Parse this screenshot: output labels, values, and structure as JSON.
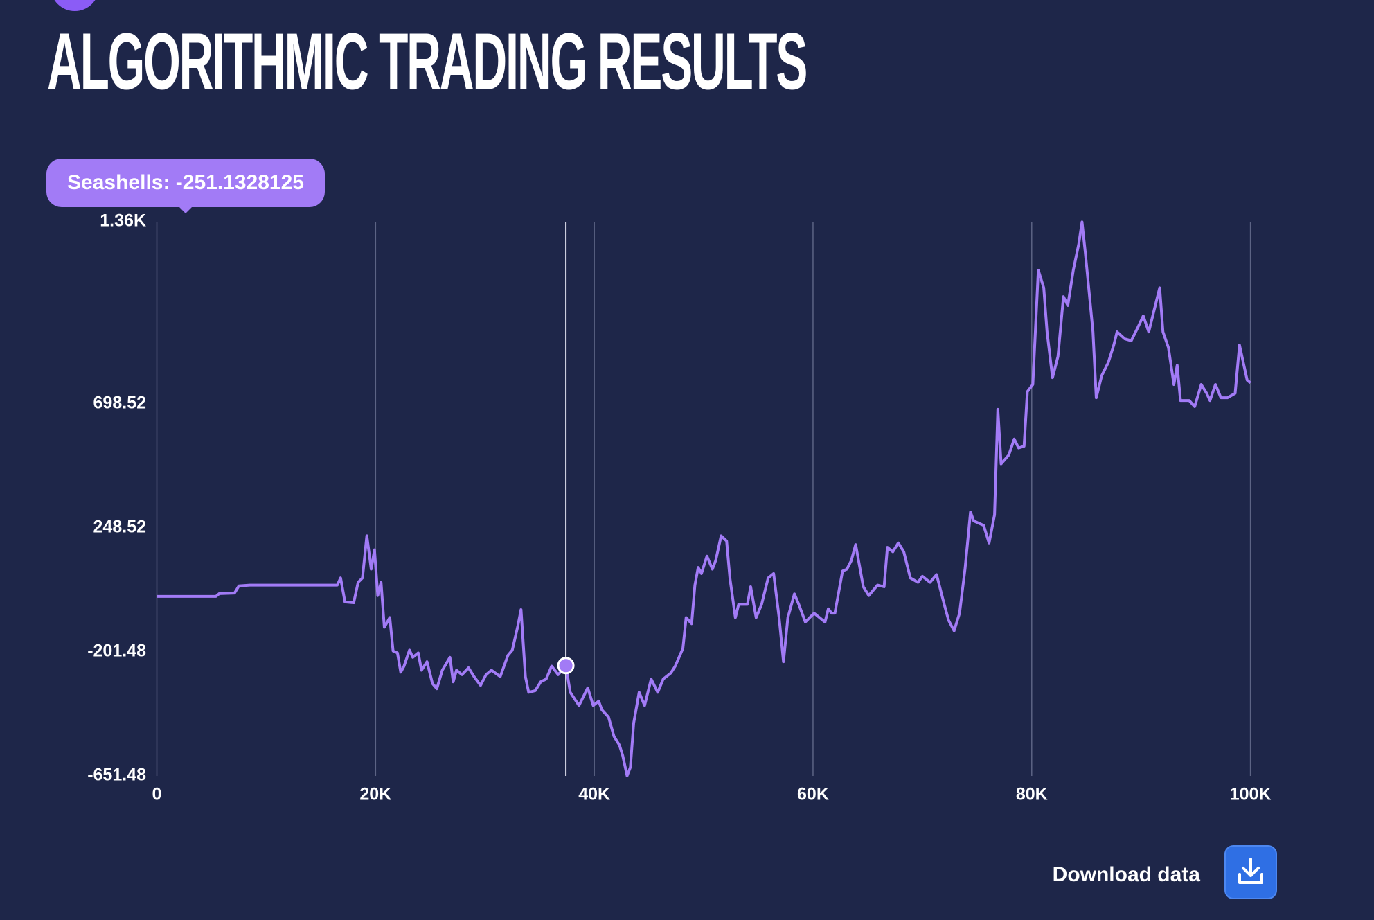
{
  "chart_data": {
    "type": "line",
    "title": "ALGORITHMIC TRADING RESULTS",
    "color": "#a27bf6",
    "grid": true,
    "tooltip": {
      "text": "Seashells: -251.1328125",
      "x": 37400
    },
    "button": "Download data",
    "xlim": [
      0,
      100000
    ],
    "xticks": [
      0,
      {
        "value": 20000,
        "label": "20K"
      },
      {
        "value": 40000,
        "label": "40K"
      },
      {
        "value": 60000,
        "label": "60K"
      },
      {
        "value": 80000,
        "label": "80K"
      },
      {
        "value": 100000,
        "label": "100K"
      }
    ],
    "ylim": [
      -651.48,
      1360
    ],
    "yticks": [
      -651.48,
      -201.48,
      248.52,
      698.52,
      {
        "value": 1360,
        "label": "1.36K"
      }
    ],
    "x": [
      0,
      5400,
      5700,
      7100,
      7500,
      8500,
      16500,
      16800,
      17200,
      18000,
      18400,
      18800,
      19200,
      19600,
      19900,
      20200,
      20500,
      20800,
      21300,
      21600,
      22000,
      22300,
      22600,
      23100,
      23400,
      23900,
      24200,
      24700,
      25200,
      25600,
      26100,
      26800,
      27100,
      27400,
      27900,
      28500,
      29000,
      29600,
      30100,
      30600,
      31400,
      32100,
      32500,
      33000,
      33300,
      33700,
      34000,
      34600,
      35100,
      35600,
      36100,
      36700,
      37400,
      37800,
      38600,
      39400,
      39900,
      40400,
      40700,
      41300,
      41800,
      42300,
      42600,
      43000,
      43300,
      43600,
      44100,
      44600,
      45200,
      45800,
      46300,
      47000,
      47400,
      48100,
      48400,
      48900,
      49200,
      49500,
      49800,
      50300,
      50800,
      51100,
      51600,
      52100,
      52400,
      52900,
      53200,
      53700,
      54000,
      54300,
      54800,
      55300,
      55900,
      56400,
      56900,
      57300,
      57700,
      58300,
      58700,
      59300,
      60100,
      60600,
      61100,
      61400,
      61700,
      62000,
      62700,
      63100,
      63500,
      63900,
      64600,
      65100,
      65900,
      66500,
      66800,
      67300,
      67800,
      68300,
      68900,
      69600,
      70000,
      70700,
      71300,
      72000,
      72400,
      72900,
      73400,
      73900,
      74400,
      74700,
      75600,
      76100,
      76600,
      76900,
      77200,
      77900,
      78400,
      78800,
      79300,
      79600,
      80100,
      80600,
      81100,
      81400,
      81900,
      82400,
      82900,
      83300,
      83800,
      84300,
      84600,
      84900,
      85600,
      85900,
      86400,
      87000,
      87500,
      87800,
      88500,
      89100,
      89700,
      90200,
      90700,
      91200,
      91700,
      92000,
      92500,
      93000,
      93300,
      93600,
      94400,
      94900,
      95500,
      96000,
      96300,
      96800,
      97300,
      97900,
      98600,
      99000,
      99400,
      99700,
      100000
    ],
    "values": [
      0,
      0,
      10,
      12,
      38,
      41,
      41,
      67,
      -20,
      -23,
      51,
      67,
      220,
      99,
      169,
      3,
      51,
      -112,
      -77,
      -198,
      -205,
      -275,
      -253,
      -195,
      -221,
      -205,
      -268,
      -237,
      -316,
      -335,
      -268,
      -221,
      -310,
      -268,
      -284,
      -259,
      -291,
      -323,
      -284,
      -268,
      -291,
      -214,
      -195,
      -109,
      -48,
      -291,
      -348,
      -342,
      -310,
      -300,
      -253,
      -284,
      -251.1328125,
      -348,
      -396,
      -332,
      -396,
      -380,
      -412,
      -438,
      -508,
      -540,
      -578,
      -651,
      -620,
      -460,
      -348,
      -396,
      -300,
      -348,
      -300,
      -278,
      -253,
      -189,
      -77,
      -99,
      41,
      105,
      83,
      146,
      99,
      130,
      220,
      201,
      67,
      -77,
      -29,
      -29,
      -29,
      35,
      -77,
      -29,
      67,
      83,
      -77,
      -237,
      -77,
      9,
      -29,
      -93,
      -61,
      -77,
      -93,
      -45,
      -61,
      -61,
      92,
      99,
      130,
      188,
      35,
      3,
      41,
      35,
      178,
      162,
      194,
      162,
      67,
      51,
      73,
      51,
      79,
      -29,
      -87,
      -125,
      -61,
      99,
      306,
      274,
      258,
      194,
      296,
      679,
      481,
      513,
      571,
      539,
      545,
      743,
      769,
      1184,
      1120,
      960,
      794,
      871,
      1088,
      1056,
      1184,
      1279,
      1359,
      1247,
      960,
      721,
      801,
      849,
      912,
      960,
      935,
      928,
      976,
      1018,
      960,
      1040,
      1120,
      960,
      903,
      769,
      839,
      711,
      711,
      689,
      769,
      737,
      711,
      769,
      721,
      721,
      737,
      912,
      839,
      785,
      775
    ]
  }
}
